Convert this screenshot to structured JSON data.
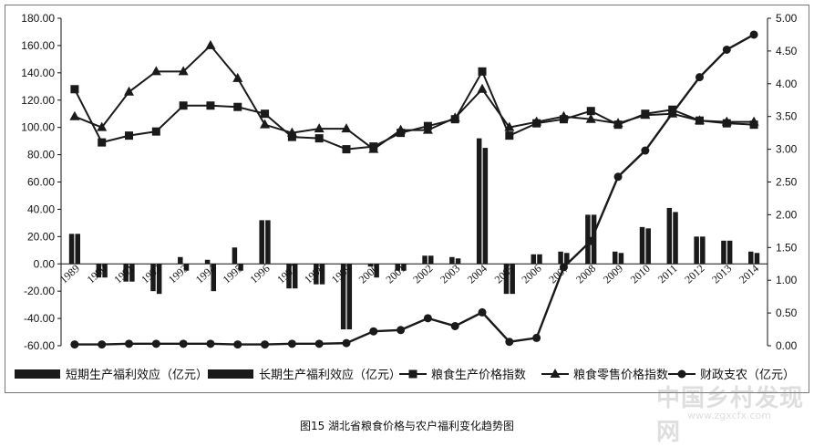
{
  "caption": "图15   湖北省粮食价格与农户福利变化趋势图",
  "watermark": {
    "text": "中国乡村发现网",
    "url": "www.zgxcfx.com"
  },
  "chart_data": {
    "type": "bar",
    "categories": [
      "1989",
      "1990",
      "1991",
      "1992",
      "1993",
      "1994",
      "1995",
      "1996",
      "1997",
      "1998",
      "1999",
      "2000",
      "2001",
      "2002",
      "2003",
      "2004",
      "2005",
      "2006",
      "2007",
      "2008",
      "2009",
      "2010",
      "2011",
      "2012",
      "2013",
      "2014"
    ],
    "axes": {
      "left": {
        "ylim": [
          -60,
          180
        ],
        "ticks": [
          "180.00",
          "160.00",
          "140.00",
          "120.00",
          "100.00",
          "80.00",
          "60.00",
          "40.00",
          "20.00",
          "0.00",
          "-20.00",
          "-40.00",
          "-60.00"
        ]
      },
      "right": {
        "ylim": [
          0,
          5
        ],
        "ticks": [
          "5.00",
          "4.50",
          "4.00",
          "3.50",
          "3.00",
          "2.50",
          "2.00",
          "1.50",
          "1.00",
          "0.50",
          "0.00"
        ]
      }
    },
    "grid": false,
    "legend_position": "bottom",
    "series": [
      {
        "name": "短期生产福利效应（亿元）",
        "type": "bar",
        "axis": "left",
        "color": "#1a1a1a",
        "values": [
          22,
          -10,
          -13,
          -20,
          5,
          3,
          12,
          32,
          -18,
          -15,
          -48,
          -2,
          -5,
          6,
          5,
          92,
          -22,
          7,
          9,
          36,
          9,
          27,
          41,
          20,
          17,
          9
        ]
      },
      {
        "name": "长期生产福利效应（亿元）",
        "type": "bar",
        "axis": "left",
        "color": "#1a1a1a",
        "values": [
          22,
          -10,
          -13,
          -22,
          -5,
          -20,
          -5,
          32,
          -18,
          -15,
          -48,
          -10,
          -5,
          6,
          4,
          85,
          -22,
          7,
          8,
          36,
          8,
          26,
          38,
          20,
          17,
          8
        ]
      },
      {
        "name": "粮食生产价格指数",
        "type": "line",
        "axis": "left",
        "marker": "square",
        "color": "#1a1a1a",
        "values": [
          128,
          89,
          94,
          97,
          116,
          116,
          115,
          110,
          93,
          92,
          84,
          86,
          96,
          101,
          106,
          141,
          94,
          103,
          106,
          112,
          102,
          110,
          113,
          105,
          103,
          102
        ]
      },
      {
        "name": "粮食零售价格指数",
        "type": "line",
        "axis": "left",
        "marker": "triangle",
        "color": "#1a1a1a",
        "values": [
          108,
          100,
          126,
          141,
          141,
          160,
          136,
          102,
          96,
          99,
          99,
          84,
          98,
          98,
          107,
          128,
          100,
          104,
          108,
          106,
          103,
          109,
          110,
          105,
          104,
          104
        ]
      },
      {
        "name": "财政支农（亿元）",
        "type": "line",
        "axis": "right",
        "marker": "circle",
        "color": "#1a1a1a",
        "values": [
          0.02,
          0.02,
          0.03,
          0.03,
          0.03,
          0.03,
          0.02,
          0.02,
          0.03,
          0.03,
          0.04,
          0.22,
          0.24,
          0.42,
          0.3,
          0.51,
          0.06,
          0.12,
          1.2,
          1.6,
          2.58,
          2.98,
          3.55,
          4.1,
          4.52,
          4.75
        ]
      }
    ]
  }
}
